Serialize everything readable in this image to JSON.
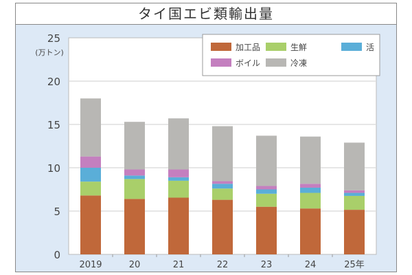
{
  "chart_data": {
    "type": "bar",
    "stacked": true,
    "title": "タイ国エビ類輸出量",
    "ylabel": "(万トン)",
    "xlabel": "",
    "categories": [
      "2019",
      "20",
      "21",
      "22",
      "23",
      "24",
      "25年"
    ],
    "ylim": [
      0,
      25
    ],
    "yticks": [
      0,
      5,
      10,
      15,
      20,
      25
    ],
    "grid": true,
    "legend": "top-right",
    "series": [
      {
        "name": "加工品",
        "color": "#c0683a",
        "values": [
          6.8,
          6.4,
          6.55,
          6.3,
          5.5,
          5.3,
          5.15
        ]
      },
      {
        "name": "生鮮",
        "color": "#a9cf6a",
        "values": [
          1.6,
          2.3,
          1.95,
          1.3,
          1.5,
          1.8,
          1.6
        ]
      },
      {
        "name": "活",
        "color": "#5aaed8",
        "values": [
          1.6,
          0.4,
          0.4,
          0.55,
          0.5,
          0.6,
          0.35
        ]
      },
      {
        "name": "ボイル",
        "color": "#c47fbf",
        "values": [
          1.3,
          0.7,
          0.9,
          0.3,
          0.4,
          0.45,
          0.3
        ]
      },
      {
        "name": "冷凍",
        "color": "#b8b7b4",
        "values": [
          6.7,
          5.5,
          5.9,
          6.35,
          5.8,
          5.45,
          5.5
        ]
      }
    ]
  }
}
